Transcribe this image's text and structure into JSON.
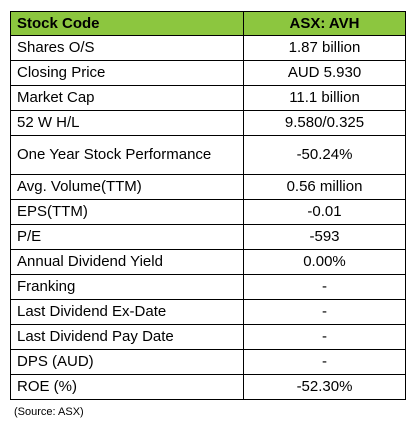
{
  "table": {
    "header": {
      "label": "Stock Code",
      "value": "ASX: AVH"
    },
    "rows": [
      {
        "label": "Shares O/S",
        "value": "1.87 billion"
      },
      {
        "label": "Closing Price",
        "value": "AUD 5.930"
      },
      {
        "label": "Market Cap",
        "value": "11.1 billion"
      },
      {
        "label": "52 W H/L",
        "value": "9.580/0.325"
      },
      {
        "label": "One Year Stock Performance",
        "value": "-50.24%"
      },
      {
        "label": "Avg. Volume(TTM)",
        "value": "0.56 million"
      },
      {
        "label": "EPS(TTM)",
        "value": "-0.01"
      },
      {
        "label": "P/E",
        "value": "-593"
      },
      {
        "label": "Annual Dividend Yield",
        "value": "0.00%"
      },
      {
        "label": "Franking",
        "value": "-"
      },
      {
        "label": "Last Dividend Ex-Date",
        "value": "-"
      },
      {
        "label": "Last Dividend Pay Date",
        "value": "-"
      },
      {
        "label": "DPS (AUD)",
        "value": "-"
      },
      {
        "label": "ROE (%)",
        "value": "-52.30%"
      }
    ],
    "header_color": "#8cc63f"
  },
  "source": "(Source: ASX)"
}
